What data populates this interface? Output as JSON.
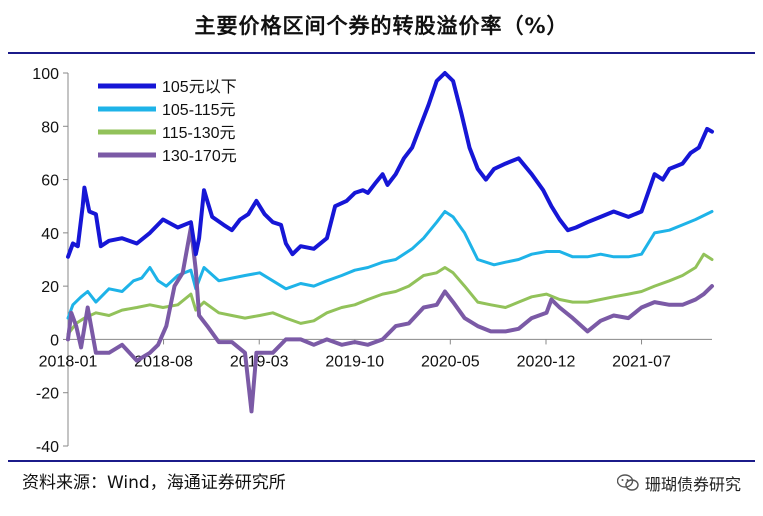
{
  "page": {
    "title": "主要价格区间个券的转股溢价率（%）",
    "source": "资料来源：Wind，海通证券研究所",
    "watermark": "珊瑚债券研究",
    "watermark_icon": "wechat-icon"
  },
  "chart_data": {
    "type": "line",
    "title": "主要价格区间个券的转股溢价率（%）",
    "xlabel": "",
    "ylabel": "",
    "ylim": [
      -40,
      100
    ],
    "yticks": [
      100,
      80,
      60,
      40,
      20,
      0,
      -20,
      -40
    ],
    "xlim": [
      2018.0,
      2021.93
    ],
    "xticks": [
      {
        "label": "2018-01",
        "t": 2018.0
      },
      {
        "label": "2018-08",
        "t": 2018.583
      },
      {
        "label": "2019-03",
        "t": 2019.167
      },
      {
        "label": "2019-10",
        "t": 2019.75
      },
      {
        "label": "2020-05",
        "t": 2020.333
      },
      {
        "label": "2020-12",
        "t": 2020.917
      },
      {
        "label": "2021-07",
        "t": 2021.5
      }
    ],
    "legend_position": "top-left",
    "series": [
      {
        "name": "105元以下",
        "color": "#1616d6",
        "width": 4,
        "points": [
          [
            2018.0,
            31
          ],
          [
            2018.03,
            36
          ],
          [
            2018.06,
            35
          ],
          [
            2018.09,
            50
          ],
          [
            2018.1,
            57
          ],
          [
            2018.13,
            48
          ],
          [
            2018.17,
            47
          ],
          [
            2018.2,
            35
          ],
          [
            2018.25,
            37
          ],
          [
            2018.33,
            38
          ],
          [
            2018.42,
            36
          ],
          [
            2018.5,
            40
          ],
          [
            2018.58,
            45
          ],
          [
            2018.67,
            42
          ],
          [
            2018.75,
            44
          ],
          [
            2018.78,
            32
          ],
          [
            2018.8,
            38
          ],
          [
            2018.83,
            56
          ],
          [
            2018.88,
            46
          ],
          [
            2018.95,
            43
          ],
          [
            2019.0,
            41
          ],
          [
            2019.05,
            45
          ],
          [
            2019.1,
            47
          ],
          [
            2019.15,
            52
          ],
          [
            2019.2,
            47
          ],
          [
            2019.25,
            44
          ],
          [
            2019.3,
            43
          ],
          [
            2019.33,
            36
          ],
          [
            2019.37,
            32
          ],
          [
            2019.42,
            35
          ],
          [
            2019.5,
            34
          ],
          [
            2019.58,
            38
          ],
          [
            2019.63,
            50
          ],
          [
            2019.7,
            52
          ],
          [
            2019.75,
            55
          ],
          [
            2019.8,
            56
          ],
          [
            2019.83,
            55
          ],
          [
            2019.88,
            59
          ],
          [
            2019.92,
            62
          ],
          [
            2019.95,
            58
          ],
          [
            2020.0,
            62
          ],
          [
            2020.05,
            68
          ],
          [
            2020.1,
            72
          ],
          [
            2020.15,
            80
          ],
          [
            2020.2,
            88
          ],
          [
            2020.25,
            97
          ],
          [
            2020.3,
            100
          ],
          [
            2020.35,
            97
          ],
          [
            2020.4,
            85
          ],
          [
            2020.45,
            72
          ],
          [
            2020.5,
            64
          ],
          [
            2020.55,
            60
          ],
          [
            2020.6,
            64
          ],
          [
            2020.67,
            66
          ],
          [
            2020.75,
            68
          ],
          [
            2020.83,
            62
          ],
          [
            2020.9,
            56
          ],
          [
            2020.95,
            50
          ],
          [
            2021.0,
            45
          ],
          [
            2021.05,
            41
          ],
          [
            2021.1,
            42
          ],
          [
            2021.17,
            44
          ],
          [
            2021.25,
            46
          ],
          [
            2021.33,
            48
          ],
          [
            2021.42,
            46
          ],
          [
            2021.5,
            48
          ],
          [
            2021.58,
            62
          ],
          [
            2021.63,
            60
          ],
          [
            2021.67,
            64
          ],
          [
            2021.75,
            66
          ],
          [
            2021.8,
            70
          ],
          [
            2021.85,
            72
          ],
          [
            2021.9,
            79
          ],
          [
            2021.93,
            78
          ]
        ]
      },
      {
        "name": "105-115元",
        "color": "#1eb3e8",
        "width": 3,
        "points": [
          [
            2018.0,
            8
          ],
          [
            2018.03,
            13
          ],
          [
            2018.08,
            16
          ],
          [
            2018.12,
            18
          ],
          [
            2018.17,
            14
          ],
          [
            2018.25,
            19
          ],
          [
            2018.33,
            18
          ],
          [
            2018.4,
            22
          ],
          [
            2018.45,
            23
          ],
          [
            2018.5,
            27
          ],
          [
            2018.55,
            22
          ],
          [
            2018.6,
            20
          ],
          [
            2018.67,
            24
          ],
          [
            2018.75,
            26
          ],
          [
            2018.78,
            19
          ],
          [
            2018.83,
            27
          ],
          [
            2018.92,
            22
          ],
          [
            2019.0,
            23
          ],
          [
            2019.08,
            24
          ],
          [
            2019.17,
            25
          ],
          [
            2019.25,
            22
          ],
          [
            2019.33,
            19
          ],
          [
            2019.42,
            21
          ],
          [
            2019.5,
            20
          ],
          [
            2019.58,
            22
          ],
          [
            2019.67,
            24
          ],
          [
            2019.75,
            26
          ],
          [
            2019.83,
            27
          ],
          [
            2019.92,
            29
          ],
          [
            2020.0,
            30
          ],
          [
            2020.1,
            34
          ],
          [
            2020.17,
            38
          ],
          [
            2020.25,
            44
          ],
          [
            2020.3,
            48
          ],
          [
            2020.35,
            46
          ],
          [
            2020.42,
            40
          ],
          [
            2020.5,
            30
          ],
          [
            2020.6,
            28
          ],
          [
            2020.67,
            29
          ],
          [
            2020.75,
            30
          ],
          [
            2020.83,
            32
          ],
          [
            2020.92,
            33
          ],
          [
            2021.0,
            33
          ],
          [
            2021.08,
            31
          ],
          [
            2021.17,
            31
          ],
          [
            2021.25,
            32
          ],
          [
            2021.33,
            31
          ],
          [
            2021.42,
            31
          ],
          [
            2021.5,
            32
          ],
          [
            2021.58,
            40
          ],
          [
            2021.67,
            41
          ],
          [
            2021.75,
            43
          ],
          [
            2021.83,
            45
          ],
          [
            2021.93,
            48
          ]
        ]
      },
      {
        "name": "115-130元",
        "color": "#92c25a",
        "width": 3,
        "points": [
          [
            2018.0,
            2
          ],
          [
            2018.05,
            6
          ],
          [
            2018.1,
            8
          ],
          [
            2018.17,
            10
          ],
          [
            2018.25,
            9
          ],
          [
            2018.33,
            11
          ],
          [
            2018.42,
            12
          ],
          [
            2018.5,
            13
          ],
          [
            2018.58,
            12
          ],
          [
            2018.67,
            13
          ],
          [
            2018.75,
            17
          ],
          [
            2018.78,
            11
          ],
          [
            2018.83,
            14
          ],
          [
            2018.92,
            10
          ],
          [
            2019.0,
            9
          ],
          [
            2019.08,
            8
          ],
          [
            2019.17,
            9
          ],
          [
            2019.25,
            10
          ],
          [
            2019.33,
            8
          ],
          [
            2019.42,
            6
          ],
          [
            2019.5,
            7
          ],
          [
            2019.58,
            10
          ],
          [
            2019.67,
            12
          ],
          [
            2019.75,
            13
          ],
          [
            2019.83,
            15
          ],
          [
            2019.92,
            17
          ],
          [
            2020.0,
            18
          ],
          [
            2020.08,
            20
          ],
          [
            2020.17,
            24
          ],
          [
            2020.25,
            25
          ],
          [
            2020.3,
            27
          ],
          [
            2020.35,
            25
          ],
          [
            2020.42,
            20
          ],
          [
            2020.5,
            14
          ],
          [
            2020.58,
            13
          ],
          [
            2020.67,
            12
          ],
          [
            2020.75,
            14
          ],
          [
            2020.83,
            16
          ],
          [
            2020.92,
            17
          ],
          [
            2021.0,
            15
          ],
          [
            2021.08,
            14
          ],
          [
            2021.17,
            14
          ],
          [
            2021.25,
            15
          ],
          [
            2021.33,
            16
          ],
          [
            2021.42,
            17
          ],
          [
            2021.5,
            18
          ],
          [
            2021.58,
            20
          ],
          [
            2021.67,
            22
          ],
          [
            2021.75,
            24
          ],
          [
            2021.83,
            27
          ],
          [
            2021.88,
            32
          ],
          [
            2021.93,
            30
          ]
        ]
      },
      {
        "name": "130-170元",
        "color": "#7b5aa6",
        "width": 4,
        "points": [
          [
            2018.0,
            0
          ],
          [
            2018.02,
            10
          ],
          [
            2018.05,
            5
          ],
          [
            2018.08,
            -3
          ],
          [
            2018.12,
            12
          ],
          [
            2018.17,
            -5
          ],
          [
            2018.25,
            -5
          ],
          [
            2018.33,
            -2
          ],
          [
            2018.42,
            -8
          ],
          [
            2018.5,
            -5
          ],
          [
            2018.55,
            -2
          ],
          [
            2018.6,
            5
          ],
          [
            2018.65,
            20
          ],
          [
            2018.7,
            25
          ],
          [
            2018.75,
            42
          ],
          [
            2018.78,
            26
          ],
          [
            2018.8,
            9
          ],
          [
            2018.85,
            5
          ],
          [
            2018.92,
            -1
          ],
          [
            2019.0,
            -1
          ],
          [
            2019.08,
            -5
          ],
          [
            2019.12,
            -27
          ],
          [
            2019.15,
            -5
          ],
          [
            2019.25,
            -5
          ],
          [
            2019.33,
            0
          ],
          [
            2019.42,
            0
          ],
          [
            2019.5,
            -2
          ],
          [
            2019.58,
            0
          ],
          [
            2019.67,
            -2
          ],
          [
            2019.75,
            -1
          ],
          [
            2019.83,
            -2
          ],
          [
            2019.92,
            0
          ],
          [
            2020.0,
            5
          ],
          [
            2020.08,
            6
          ],
          [
            2020.17,
            12
          ],
          [
            2020.25,
            13
          ],
          [
            2020.3,
            18
          ],
          [
            2020.35,
            14
          ],
          [
            2020.42,
            8
          ],
          [
            2020.5,
            5
          ],
          [
            2020.58,
            3
          ],
          [
            2020.67,
            3
          ],
          [
            2020.75,
            4
          ],
          [
            2020.83,
            8
          ],
          [
            2020.92,
            10
          ],
          [
            2020.95,
            15
          ],
          [
            2021.0,
            12
          ],
          [
            2021.08,
            8
          ],
          [
            2021.17,
            3
          ],
          [
            2021.25,
            7
          ],
          [
            2021.33,
            9
          ],
          [
            2021.42,
            8
          ],
          [
            2021.5,
            12
          ],
          [
            2021.58,
            14
          ],
          [
            2021.67,
            13
          ],
          [
            2021.75,
            13
          ],
          [
            2021.83,
            15
          ],
          [
            2021.88,
            17
          ],
          [
            2021.93,
            20
          ]
        ]
      }
    ]
  }
}
